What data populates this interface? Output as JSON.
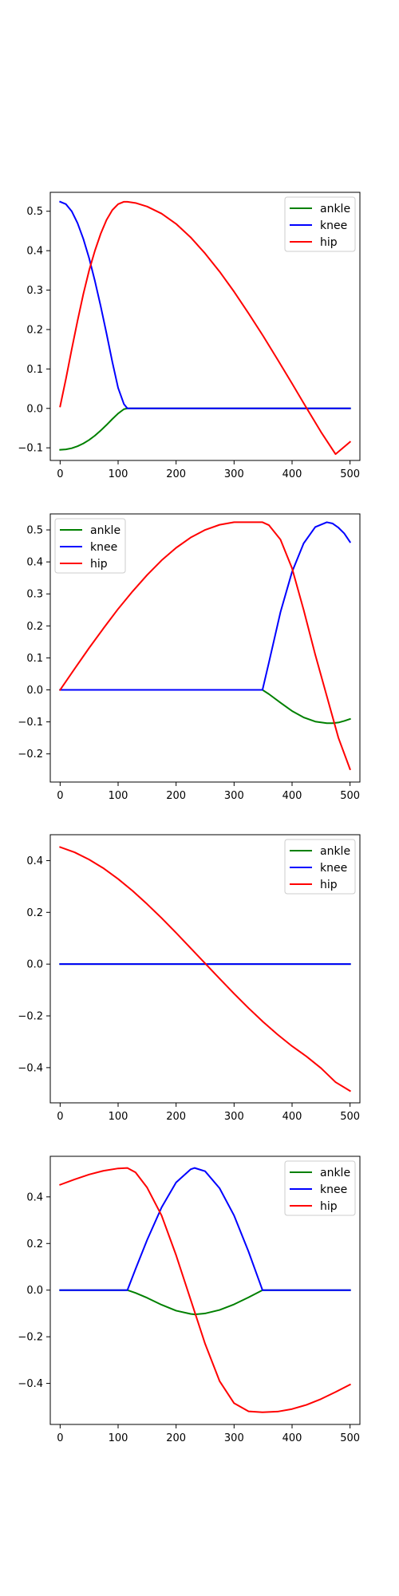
{
  "chart_data": [
    {
      "type": "line",
      "xlim": [
        -17,
        517
      ],
      "ylim": [
        -0.132,
        0.548
      ],
      "xticks": [
        0,
        100,
        200,
        300,
        400,
        500
      ],
      "xtick_labels": [
        "0",
        "100",
        "200",
        "300",
        "400",
        "500"
      ],
      "yticks": [
        -0.1,
        0.0,
        0.1,
        0.2,
        0.3,
        0.4,
        0.5
      ],
      "ytick_labels": [
        "−0.1",
        "0.0",
        "0.1",
        "0.2",
        "0.3",
        "0.4",
        "0.5"
      ],
      "legend_position": "top-right",
      "grid": false,
      "series": [
        {
          "name": "ankle",
          "color": "#008000",
          "x": [
            0,
            10,
            20,
            30,
            40,
            50,
            60,
            70,
            80,
            90,
            100,
            110,
            116,
            130,
            200,
            300,
            400,
            500
          ],
          "y": [
            -0.105,
            -0.104,
            -0.101,
            -0.096,
            -0.089,
            -0.08,
            -0.069,
            -0.056,
            -0.042,
            -0.027,
            -0.013,
            -0.002,
            0.0,
            0.0,
            0.0,
            0.0,
            0.0,
            0.0
          ]
        },
        {
          "name": "knee",
          "color": "#0000ff",
          "x": [
            0,
            10,
            20,
            30,
            40,
            50,
            60,
            70,
            80,
            90,
            100,
            110,
            116,
            200,
            300,
            400,
            500
          ],
          "y": [
            0.524,
            0.518,
            0.5,
            0.47,
            0.43,
            0.381,
            0.323,
            0.259,
            0.19,
            0.118,
            0.052,
            0.011,
            0.0,
            0.0,
            0.0,
            0.0,
            0.0
          ]
        },
        {
          "name": "hip",
          "color": "#ff0000",
          "x": [
            0,
            10,
            20,
            30,
            40,
            50,
            60,
            70,
            80,
            90,
            100,
            110,
            116,
            130,
            150,
            175,
            200,
            225,
            250,
            275,
            300,
            325,
            350,
            375,
            400,
            425,
            450,
            475,
            500
          ],
          "y": [
            0.005,
            0.075,
            0.15,
            0.222,
            0.29,
            0.35,
            0.4,
            0.443,
            0.478,
            0.503,
            0.518,
            0.524,
            0.524,
            0.521,
            0.512,
            0.494,
            0.468,
            0.434,
            0.393,
            0.347,
            0.296,
            0.241,
            0.184,
            0.124,
            0.063,
            0.001,
            -0.06,
            -0.116,
            -0.085
          ]
        }
      ]
    },
    {
      "type": "line",
      "xlim": [
        -17,
        517
      ],
      "ylim": [
        -0.288,
        0.55
      ],
      "xticks": [
        0,
        100,
        200,
        300,
        400,
        500
      ],
      "xtick_labels": [
        "0",
        "100",
        "200",
        "300",
        "400",
        "500"
      ],
      "yticks": [
        -0.2,
        -0.1,
        0.0,
        0.1,
        0.2,
        0.3,
        0.4,
        0.5
      ],
      "ytick_labels": [
        "−0.2",
        "−0.1",
        "0.0",
        "0.1",
        "0.2",
        "0.3",
        "0.4",
        "0.5"
      ],
      "legend_position": "top-left",
      "grid": false,
      "series": [
        {
          "name": "ankle",
          "color": "#008000",
          "x": [
            0,
            100,
            200,
            300,
            349,
            360,
            380,
            400,
            420,
            440,
            460,
            470,
            480,
            490,
            500
          ],
          "y": [
            0.0,
            0.0,
            0.0,
            0.0,
            0.0,
            -0.013,
            -0.04,
            -0.066,
            -0.086,
            -0.099,
            -0.104,
            -0.104,
            -0.102,
            -0.097,
            -0.091
          ]
        },
        {
          "name": "knee",
          "color": "#0000ff",
          "x": [
            0,
            100,
            200,
            300,
            349,
            360,
            380,
            400,
            420,
            440,
            460,
            470,
            480,
            490,
            500
          ],
          "y": [
            0.0,
            0.0,
            0.0,
            0.0,
            0.0,
            0.085,
            0.243,
            0.369,
            0.458,
            0.509,
            0.524,
            0.52,
            0.507,
            0.489,
            0.462
          ]
        },
        {
          "name": "hip",
          "color": "#ff0000",
          "x": [
            0,
            25,
            50,
            75,
            100,
            125,
            150,
            175,
            200,
            225,
            250,
            275,
            300,
            325,
            349,
            360,
            380,
            400,
            420,
            440,
            460,
            480,
            500
          ],
          "y": [
            0.0,
            0.066,
            0.131,
            0.193,
            0.253,
            0.308,
            0.359,
            0.405,
            0.444,
            0.476,
            0.5,
            0.516,
            0.524,
            0.524,
            0.524,
            0.515,
            0.47,
            0.38,
            0.25,
            0.11,
            -0.02,
            -0.15,
            -0.248
          ]
        }
      ]
    },
    {
      "type": "line",
      "xlim": [
        -17,
        517
      ],
      "ylim": [
        -0.536,
        0.5
      ],
      "xticks": [
        0,
        100,
        200,
        300,
        400,
        500
      ],
      "xtick_labels": [
        "0",
        "100",
        "200",
        "300",
        "400",
        "500"
      ],
      "yticks": [
        -0.4,
        -0.2,
        0.0,
        0.2,
        0.4
      ],
      "ytick_labels": [
        "−0.4",
        "−0.2",
        "0.0",
        "0.2",
        "0.4"
      ],
      "legend_position": "top-right",
      "grid": false,
      "series": [
        {
          "name": "ankle",
          "color": "#008000",
          "x": [
            0,
            100,
            200,
            300,
            400,
            500
          ],
          "y": [
            0.0,
            0.0,
            0.0,
            0.0,
            0.0,
            0.0
          ]
        },
        {
          "name": "knee",
          "color": "#0000ff",
          "x": [
            0,
            100,
            200,
            300,
            400,
            500
          ],
          "y": [
            0.0,
            0.0,
            0.0,
            0.0,
            0.0,
            0.0
          ]
        },
        {
          "name": "hip",
          "color": "#ff0000",
          "x": [
            0,
            25,
            50,
            75,
            100,
            125,
            150,
            175,
            200,
            225,
            250,
            275,
            300,
            325,
            350,
            375,
            400,
            425,
            450,
            475,
            500
          ],
          "y": [
            0.452,
            0.432,
            0.404,
            0.37,
            0.329,
            0.283,
            0.232,
            0.178,
            0.121,
            0.062,
            0.003,
            -0.056,
            -0.114,
            -0.17,
            -0.223,
            -0.272,
            -0.317,
            -0.357,
            -0.402,
            -0.456,
            -0.49
          ]
        }
      ]
    },
    {
      "type": "line",
      "xlim": [
        -17,
        517
      ],
      "ylim": [
        -0.576,
        0.574
      ],
      "xticks": [
        0,
        100,
        200,
        300,
        400,
        500
      ],
      "xtick_labels": [
        "0",
        "100",
        "200",
        "300",
        "400",
        "500"
      ],
      "yticks": [
        -0.4,
        -0.2,
        0.0,
        0.2,
        0.4
      ],
      "ytick_labels": [
        "−0.4",
        "−0.2",
        "0.0",
        "0.2",
        "0.4"
      ],
      "legend_position": "top-right",
      "grid": false,
      "series": [
        {
          "name": "ankle",
          "color": "#008000",
          "x": [
            0,
            50,
            100,
            116,
            130,
            150,
            175,
            200,
            225,
            232,
            250,
            275,
            300,
            325,
            349,
            400,
            450,
            500
          ],
          "y": [
            0.0,
            0.0,
            0.0,
            0.0,
            -0.012,
            -0.033,
            -0.063,
            -0.088,
            -0.102,
            -0.104,
            -0.1,
            -0.085,
            -0.061,
            -0.031,
            0.0,
            0.0,
            0.0,
            0.0
          ]
        },
        {
          "name": "knee",
          "color": "#0000ff",
          "x": [
            0,
            50,
            100,
            116,
            130,
            150,
            175,
            200,
            225,
            232,
            250,
            275,
            300,
            325,
            349,
            400,
            450,
            500
          ],
          "y": [
            0.0,
            0.0,
            0.0,
            0.0,
            0.09,
            0.215,
            0.355,
            0.462,
            0.518,
            0.524,
            0.51,
            0.437,
            0.32,
            0.165,
            0.0,
            0.0,
            0.0,
            0.0
          ]
        },
        {
          "name": "hip",
          "color": "#ff0000",
          "x": [
            0,
            25,
            50,
            75,
            100,
            116,
            130,
            150,
            175,
            200,
            225,
            250,
            275,
            300,
            325,
            349,
            375,
            400,
            425,
            450,
            475,
            500
          ],
          "y": [
            0.452,
            0.475,
            0.496,
            0.512,
            0.522,
            0.524,
            0.505,
            0.44,
            0.32,
            0.15,
            -0.04,
            -0.23,
            -0.39,
            -0.485,
            -0.52,
            -0.524,
            -0.521,
            -0.51,
            -0.492,
            -0.467,
            -0.437,
            -0.405
          ]
        }
      ]
    }
  ]
}
